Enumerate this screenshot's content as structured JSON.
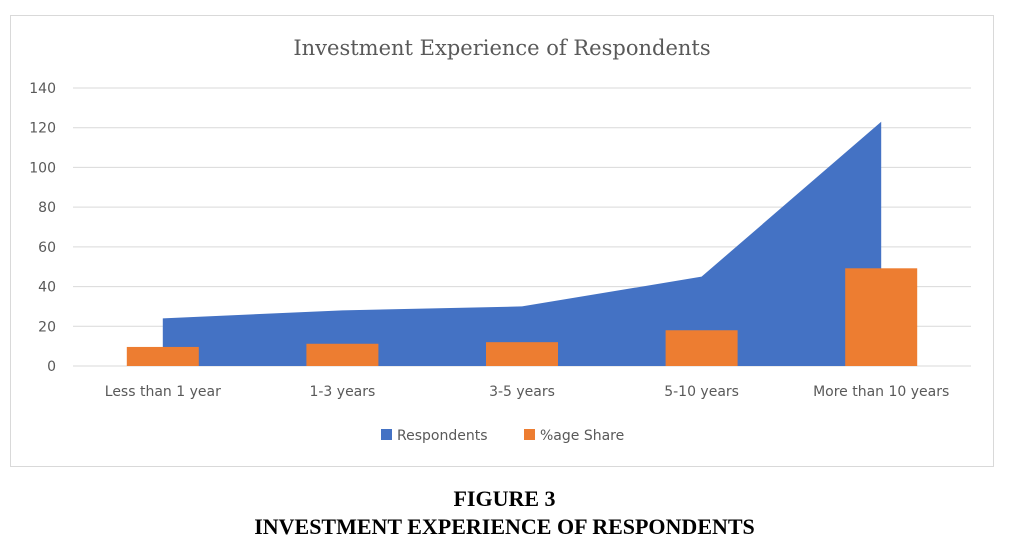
{
  "figure": {
    "label": "FIGURE 3",
    "title": "INVESTMENT EXPERIENCE OF RESPONDENTS"
  },
  "colors": {
    "respondents": "#4472C4",
    "share": "#ED7D31",
    "grid": "#d9d9d9",
    "text": "#595959"
  },
  "chart_data": {
    "type": "bar",
    "title": "Investment Experience of Respondents",
    "xlabel": "",
    "ylabel": "",
    "categories": [
      "Less than 1 year",
      "1-3 years",
      "3-5 years",
      "5-10 years",
      "More than 10 years"
    ],
    "series": [
      {
        "name": "Respondents",
        "type": "area",
        "values": [
          24,
          28,
          30,
          45,
          123
        ]
      },
      {
        "name": "%age Share",
        "type": "bar",
        "values": [
          9.6,
          11.2,
          12,
          18,
          49.2
        ]
      }
    ],
    "ylim": [
      0,
      140
    ],
    "yticks": [
      0,
      20,
      40,
      60,
      80,
      100,
      120,
      140
    ],
    "grid": true,
    "legend_position": "bottom"
  }
}
